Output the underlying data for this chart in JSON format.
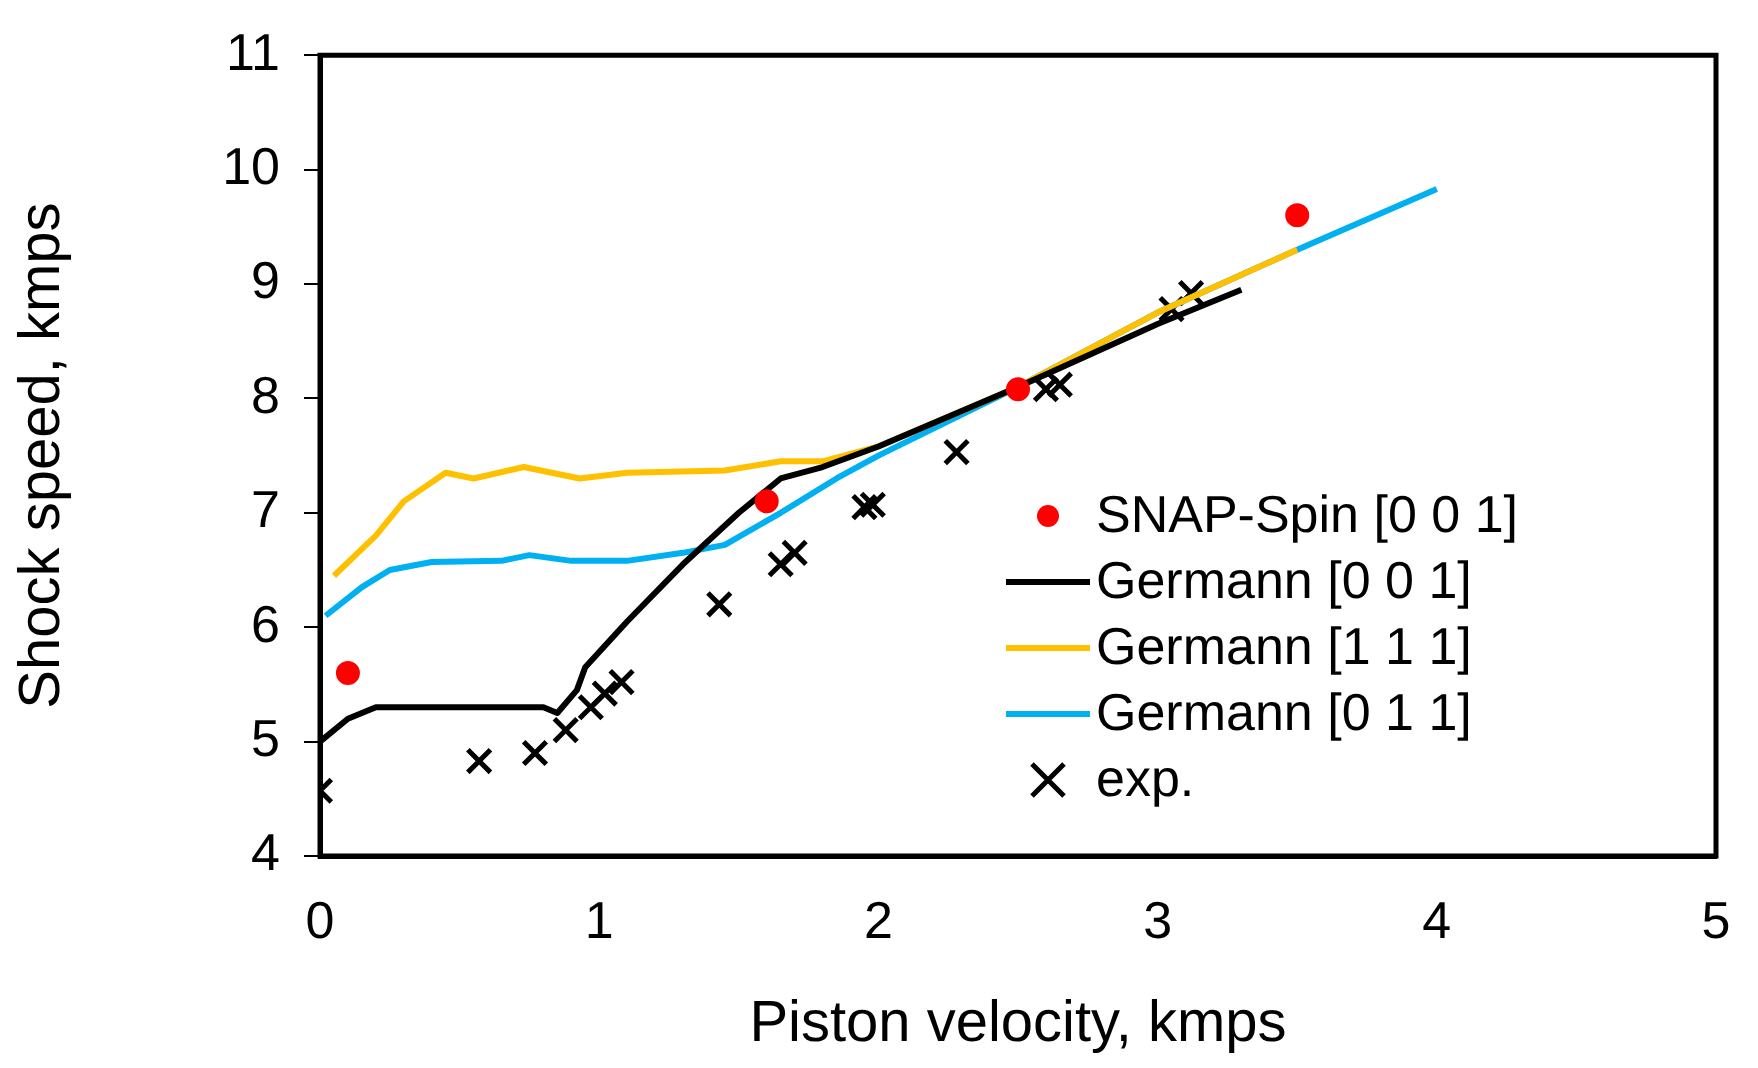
{
  "chart_data": {
    "type": "line",
    "xlabel": "Piston velocity, kmps",
    "ylabel": "Shock speed, kmps",
    "xlim": [
      0,
      5
    ],
    "xticks": [
      0,
      1,
      2,
      3,
      4,
      5
    ],
    "ylim": [
      4,
      11
    ],
    "yticks": [
      4,
      5,
      6,
      7,
      8,
      9,
      10,
      11
    ],
    "grid": false,
    "legend": "bottom right",
    "series": [
      {
        "name": "SNAP-Spin [0 0 1]",
        "type": "scatter",
        "marker": "circle",
        "color": "#ff0000",
        "x": [
          0.1,
          1.6,
          2.5,
          3.5
        ],
        "values": [
          5.6,
          7.1,
          8.08,
          9.6
        ]
      },
      {
        "name": "Germann [0 0 1]",
        "marker": "none",
        "color": "#000000",
        "x": [
          0,
          0.1,
          0.2,
          0.8,
          0.85,
          0.92,
          0.95,
          1.1,
          1.3,
          1.5,
          1.65,
          1.8,
          2.0,
          2.5,
          3.0,
          3.3
        ],
        "values": [
          5.0,
          5.2,
          5.3,
          5.3,
          5.25,
          5.45,
          5.65,
          6.05,
          6.55,
          7.0,
          7.3,
          7.4,
          7.58,
          8.1,
          8.65,
          8.95
        ]
      },
      {
        "name": "Germann [1 1 1]",
        "marker": "none",
        "color": "#ffc000",
        "x": [
          0.05,
          0.2,
          0.3,
          0.45,
          0.55,
          0.73,
          0.93,
          1.1,
          1.45,
          1.65,
          1.8,
          2.0,
          2.5,
          3.0,
          3.5
        ],
        "values": [
          6.45,
          6.8,
          7.1,
          7.35,
          7.3,
          7.4,
          7.3,
          7.35,
          7.37,
          7.45,
          7.45,
          7.58,
          8.1,
          8.75,
          9.3
        ]
      },
      {
        "name": "Germann [0 1 1]",
        "marker": "none",
        "color": "#00b0f0",
        "x": [
          0.02,
          0.15,
          0.25,
          0.4,
          0.65,
          0.75,
          0.9,
          1.1,
          1.3,
          1.45,
          1.65,
          1.85,
          2.0,
          2.5,
          3.0,
          3.5,
          4.0
        ],
        "values": [
          6.1,
          6.35,
          6.5,
          6.57,
          6.58,
          6.63,
          6.58,
          6.58,
          6.65,
          6.72,
          7.0,
          7.3,
          7.5,
          8.1,
          8.75,
          9.3,
          9.83
        ]
      },
      {
        "name": "exp.",
        "type": "scatter",
        "marker": "cross",
        "color": "#000000",
        "x": [
          0,
          0.57,
          0.77,
          0.88,
          0.97,
          1.02,
          1.08,
          1.43,
          1.65,
          1.7,
          1.95,
          1.98,
          2.28,
          2.6,
          2.65,
          3.05,
          3.12
        ],
        "values": [
          4.57,
          4.83,
          4.9,
          5.1,
          5.3,
          5.42,
          5.52,
          6.2,
          6.55,
          6.65,
          7.05,
          7.07,
          7.53,
          8.08,
          8.12,
          8.78,
          8.92
        ]
      }
    ]
  }
}
